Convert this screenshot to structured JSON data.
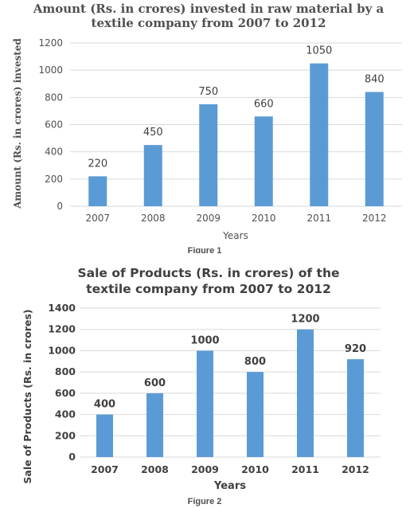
{
  "chart_data": [
    {
      "type": "bar",
      "title": "Amount (Rs. in crores) invested in raw material by a textile company from 2007 to 2012",
      "title_lines": [
        "Amount (Rs. in crores) invested in raw material by a",
        "textile company from 2007 to 2012"
      ],
      "xlabel": "Years",
      "ylabel": "Amount (Rs. in crores) invested",
      "categories": [
        "2007",
        "2008",
        "2009",
        "2010",
        "2011",
        "2012"
      ],
      "values": [
        220,
        450,
        750,
        660,
        1050,
        840
      ],
      "ylim": [
        0,
        1200
      ],
      "yticks": [
        0,
        200,
        400,
        600,
        800,
        1000,
        1200
      ],
      "grid": true,
      "legend": "none",
      "bar_color": "#5b9bd5",
      "caption": "Figure 1"
    },
    {
      "type": "bar",
      "title": "Sale of Products (Rs. in crores) of the textile company from 2007 to 2012",
      "title_lines": [
        "Sale of Products (Rs. in crores) of the",
        "textile company from 2007 to 2012"
      ],
      "xlabel": "Years",
      "ylabel": "Sale of Products (Rs. in crores)",
      "categories": [
        "2007",
        "2008",
        "2009",
        "2010",
        "2011",
        "2012"
      ],
      "values": [
        400,
        600,
        1000,
        800,
        1200,
        920
      ],
      "ylim": [
        0,
        1400
      ],
      "yticks": [
        0,
        200,
        400,
        600,
        800,
        1000,
        1200,
        1400
      ],
      "grid": true,
      "legend": "none",
      "bar_color": "#5b9bd5",
      "caption": "Figure 2"
    }
  ]
}
